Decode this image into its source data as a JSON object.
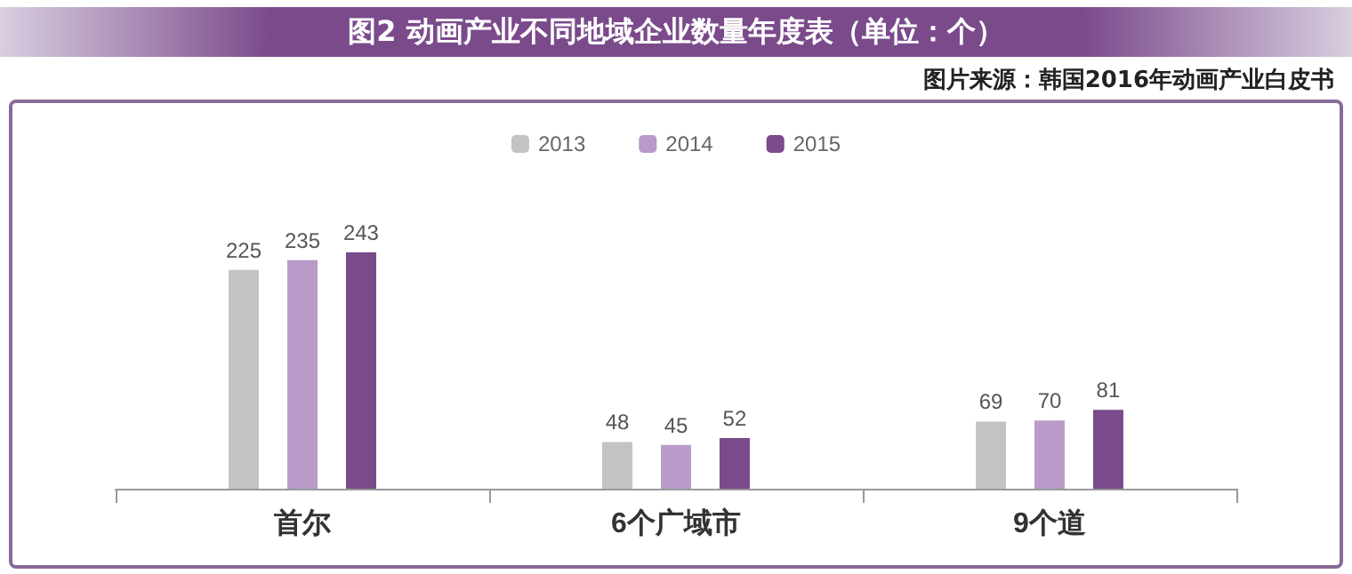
{
  "chart_data": {
    "type": "bar",
    "title": "图2 动画产业不同地域企业数量年度表（单位：个）",
    "annotations": [
      "图片来源：韩国2016年动画产业白皮书"
    ],
    "categories": [
      "首尔",
      "6个广域市",
      "9个道"
    ],
    "series": [
      {
        "name": "2013",
        "color": "#c3c3c3",
        "values": [
          225,
          48,
          69
        ]
      },
      {
        "name": "2014",
        "color": "#b99ac9",
        "values": [
          235,
          45,
          70
        ]
      },
      {
        "name": "2015",
        "color": "#7a4a8b",
        "values": [
          243,
          52,
          81
        ]
      }
    ],
    "data_labels": true,
    "legend": "top",
    "grid": false
  }
}
